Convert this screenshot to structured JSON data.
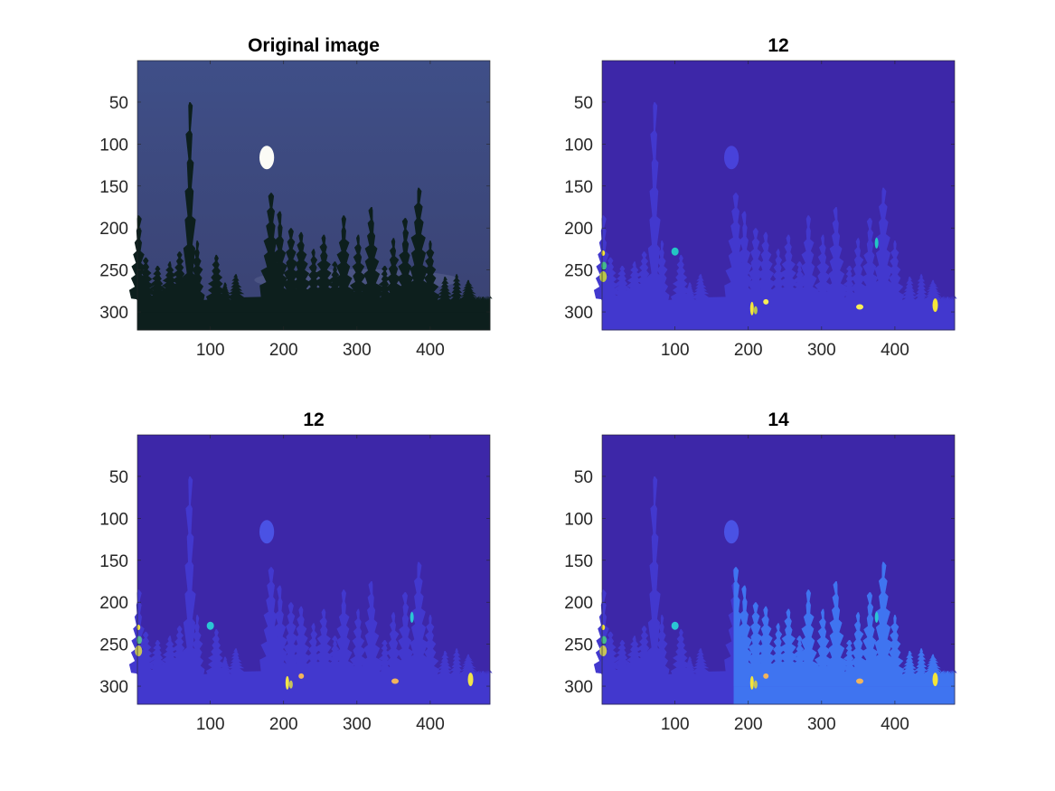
{
  "figure": {
    "background": "#ffffff",
    "panels": [
      {
        "title": "Original image",
        "kind": "photo",
        "image_note": "night sky with moon over silhouetted conifer trees",
        "colors": {
          "sky_top": "#3f4f88",
          "sky_bottom": "#3a4272",
          "moon": "#fbfbf6",
          "trees": "#0d1f1d",
          "horizon_glow": "#5b6490"
        },
        "xticks": [
          100,
          200,
          300,
          400
        ],
        "yticks": [
          50,
          100,
          150,
          200,
          250,
          300
        ]
      },
      {
        "title": "12",
        "kind": "segmentation",
        "colors": {
          "background": "#3d27a8",
          "trees": "#4238ce",
          "moon": "#4842da",
          "spots": [
            "#f4e53a",
            "#f7ee55",
            "#23c6c4",
            "#45b98c",
            "#b9c74a"
          ]
        },
        "xticks": [
          100,
          200,
          300,
          400
        ],
        "yticks": [
          50,
          100,
          150,
          200,
          250,
          300
        ]
      },
      {
        "title": "12",
        "kind": "segmentation",
        "colors": {
          "background": "#3d27a8",
          "trees": "#4238ce",
          "moon": "#4a52e4",
          "spots": [
            "#f1e44a",
            "#f2b45c",
            "#2bc6d4",
            "#59b894",
            "#c7c45a"
          ]
        },
        "xticks": [
          100,
          200,
          300,
          400
        ],
        "yticks": [
          50,
          100,
          150,
          200,
          250,
          300
        ]
      },
      {
        "title": "14",
        "kind": "segmentation",
        "colors": {
          "background": "#3d27a8",
          "trees_left": "#4238ce",
          "trees_right": "#3f74f0",
          "moon": "#4a52e4",
          "spots": [
            "#f4e53a",
            "#f2b45c",
            "#2bc6d4",
            "#45b98c",
            "#c7c45a"
          ]
        },
        "xticks": [
          100,
          200,
          300,
          400
        ],
        "yticks": [
          50,
          100,
          150,
          200,
          250,
          300
        ]
      }
    ]
  },
  "chart_data": [
    {
      "type": "heatmap",
      "title": "Original image",
      "xlim": [
        0.5,
        481.5
      ],
      "ylim": [
        0.5,
        321.5
      ],
      "y_direction": "reversed",
      "xticks": [
        100,
        200,
        300,
        400
      ],
      "yticks": [
        50,
        100,
        150,
        200,
        250,
        300
      ]
    },
    {
      "type": "heatmap",
      "title": "12",
      "xlim": [
        0.5,
        481.5
      ],
      "ylim": [
        0.5,
        321.5
      ],
      "y_direction": "reversed",
      "xticks": [
        100,
        200,
        300,
        400
      ],
      "yticks": [
        50,
        100,
        150,
        200,
        250,
        300
      ]
    },
    {
      "type": "heatmap",
      "title": "12",
      "xlim": [
        0.5,
        481.5
      ],
      "ylim": [
        0.5,
        321.5
      ],
      "y_direction": "reversed",
      "xticks": [
        100,
        200,
        300,
        400
      ],
      "yticks": [
        50,
        100,
        150,
        200,
        250,
        300
      ]
    },
    {
      "type": "heatmap",
      "title": "14",
      "xlim": [
        0.5,
        481.5
      ],
      "ylim": [
        0.5,
        321.5
      ],
      "y_direction": "reversed",
      "xticks": [
        100,
        200,
        300,
        400
      ],
      "yticks": [
        50,
        100,
        150,
        200,
        250,
        300
      ]
    }
  ]
}
